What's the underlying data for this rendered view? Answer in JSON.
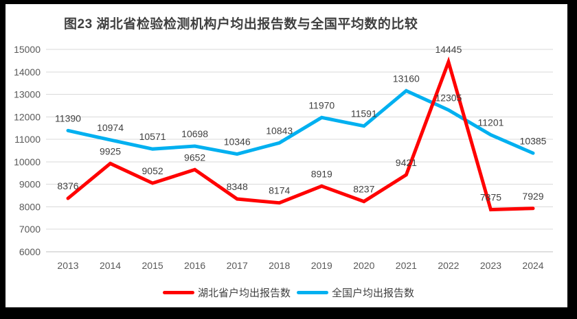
{
  "title": "图23 湖北省检验检测机构户均出报告数与全国平均数的比较",
  "chart_data": {
    "type": "line",
    "categories": [
      "2013",
      "2014",
      "2015",
      "2016",
      "2017",
      "2018",
      "2019",
      "2020",
      "2021",
      "2022",
      "2023",
      "2024"
    ],
    "series": [
      {
        "name": "湖北省户均出报告数",
        "color": "#ff0000",
        "values": [
          8376,
          9925,
          9052,
          9652,
          8348,
          8174,
          8919,
          8237,
          9421,
          14445,
          7875,
          7929
        ]
      },
      {
        "name": "全国户均出报告数",
        "color": "#00b0f0",
        "values": [
          11390,
          10974,
          10571,
          10698,
          10346,
          10843,
          11970,
          11591,
          13160,
          12305,
          11201,
          10385
        ]
      }
    ],
    "title": "图23 湖北省检验检测机构户均出报告数与全国平均数的比较",
    "xlabel": "",
    "ylabel": "",
    "ylim": [
      6000,
      15000
    ],
    "ytick_step": 1000,
    "yticks": [
      6000,
      7000,
      8000,
      9000,
      10000,
      11000,
      12000,
      13000,
      14000,
      15000
    ],
    "grid": "horizontal",
    "data_labels": true,
    "legend_position": "bottom"
  },
  "colors": {
    "grid_line": "#d9d9d9",
    "axis_line": "#bfbfbf",
    "axis_text": "#595959",
    "data_label_text": "#404040",
    "title_text": "#3f3f3f",
    "frame": "#000000",
    "background": "#ffffff"
  }
}
